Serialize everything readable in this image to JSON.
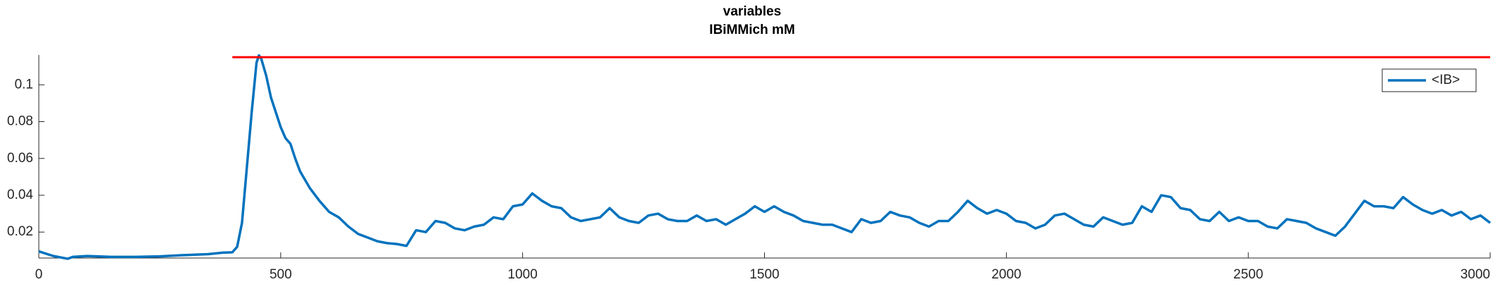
{
  "chart_data": {
    "type": "line",
    "title": "variables",
    "subtitle": "IBiMMich mM",
    "xlim": [
      0,
      3000
    ],
    "xticks": [
      0,
      500,
      1000,
      1500,
      2000,
      2500,
      3000
    ],
    "ylim": [
      0.0059,
      0.1162
    ],
    "yticks": [
      0.02,
      0.04,
      0.06,
      0.08,
      0.1
    ],
    "legend": "upper right",
    "series": [
      {
        "name": "<IB>",
        "color": "#0072bd",
        "x": [
          0,
          30,
          60,
          70,
          100,
          150,
          200,
          250,
          300,
          350,
          380,
          400,
          410,
          420,
          430,
          440,
          450,
          455,
          460,
          470,
          480,
          490,
          500,
          510,
          520,
          530,
          540,
          560,
          580,
          600,
          620,
          640,
          660,
          680,
          700,
          720,
          740,
          760,
          780,
          800,
          820,
          840,
          860,
          880,
          900,
          920,
          940,
          960,
          980,
          1000,
          1020,
          1040,
          1060,
          1080,
          1100,
          1120,
          1140,
          1160,
          1180,
          1200,
          1220,
          1240,
          1260,
          1280,
          1300,
          1320,
          1340,
          1360,
          1380,
          1400,
          1420,
          1440,
          1460,
          1480,
          1500,
          1520,
          1540,
          1560,
          1580,
          1600,
          1620,
          1640,
          1660,
          1680,
          1700,
          1720,
          1740,
          1760,
          1780,
          1800,
          1820,
          1840,
          1860,
          1880,
          1900,
          1920,
          1940,
          1960,
          1980,
          2000,
          2020,
          2040,
          2060,
          2080,
          2100,
          2120,
          2140,
          2160,
          2180,
          2200,
          2220,
          2240,
          2260,
          2280,
          2300,
          2320,
          2340,
          2360,
          2380,
          2400,
          2420,
          2440,
          2460,
          2480,
          2500,
          2520,
          2540,
          2560,
          2580,
          2600,
          2620,
          2640,
          2660,
          2680,
          2700,
          2720,
          2740,
          2760,
          2780,
          2800,
          2820,
          2840,
          2860,
          2880,
          2900,
          2920,
          2940,
          2960,
          2980,
          3000
        ],
        "values": [
          0.0095,
          0.007,
          0.0055,
          0.0065,
          0.007,
          0.0065,
          0.0065,
          0.0068,
          0.0075,
          0.008,
          0.0088,
          0.009,
          0.012,
          0.025,
          0.055,
          0.085,
          0.112,
          0.116,
          0.114,
          0.105,
          0.093,
          0.085,
          0.077,
          0.071,
          0.068,
          0.06,
          0.053,
          0.044,
          0.037,
          0.031,
          0.028,
          0.023,
          0.019,
          0.017,
          0.015,
          0.014,
          0.0135,
          0.0125,
          0.021,
          0.02,
          0.026,
          0.025,
          0.022,
          0.021,
          0.023,
          0.024,
          0.028,
          0.027,
          0.034,
          0.035,
          0.041,
          0.037,
          0.034,
          0.033,
          0.028,
          0.026,
          0.027,
          0.028,
          0.033,
          0.028,
          0.026,
          0.025,
          0.029,
          0.03,
          0.027,
          0.026,
          0.026,
          0.029,
          0.026,
          0.027,
          0.024,
          0.027,
          0.03,
          0.034,
          0.031,
          0.034,
          0.031,
          0.029,
          0.026,
          0.025,
          0.024,
          0.024,
          0.022,
          0.02,
          0.027,
          0.025,
          0.026,
          0.031,
          0.029,
          0.028,
          0.025,
          0.023,
          0.026,
          0.026,
          0.031,
          0.037,
          0.033,
          0.03,
          0.032,
          0.03,
          0.026,
          0.025,
          0.022,
          0.024,
          0.029,
          0.03,
          0.027,
          0.024,
          0.023,
          0.028,
          0.026,
          0.024,
          0.025,
          0.034,
          0.031,
          0.04,
          0.039,
          0.033,
          0.032,
          0.027,
          0.026,
          0.031,
          0.026,
          0.028,
          0.026,
          0.026,
          0.023,
          0.022,
          0.027,
          0.026,
          0.025,
          0.022,
          0.02,
          0.018,
          0.023,
          0.03,
          0.037,
          0.034,
          0.034,
          0.033,
          0.039,
          0.035,
          0.032,
          0.03,
          0.032,
          0.029,
          0.031,
          0.027,
          0.029,
          0.025
        ]
      },
      {
        "color": "#ff0000",
        "x": [
          400,
          3000
        ],
        "values": [
          0.115,
          0.115
        ]
      }
    ]
  }
}
